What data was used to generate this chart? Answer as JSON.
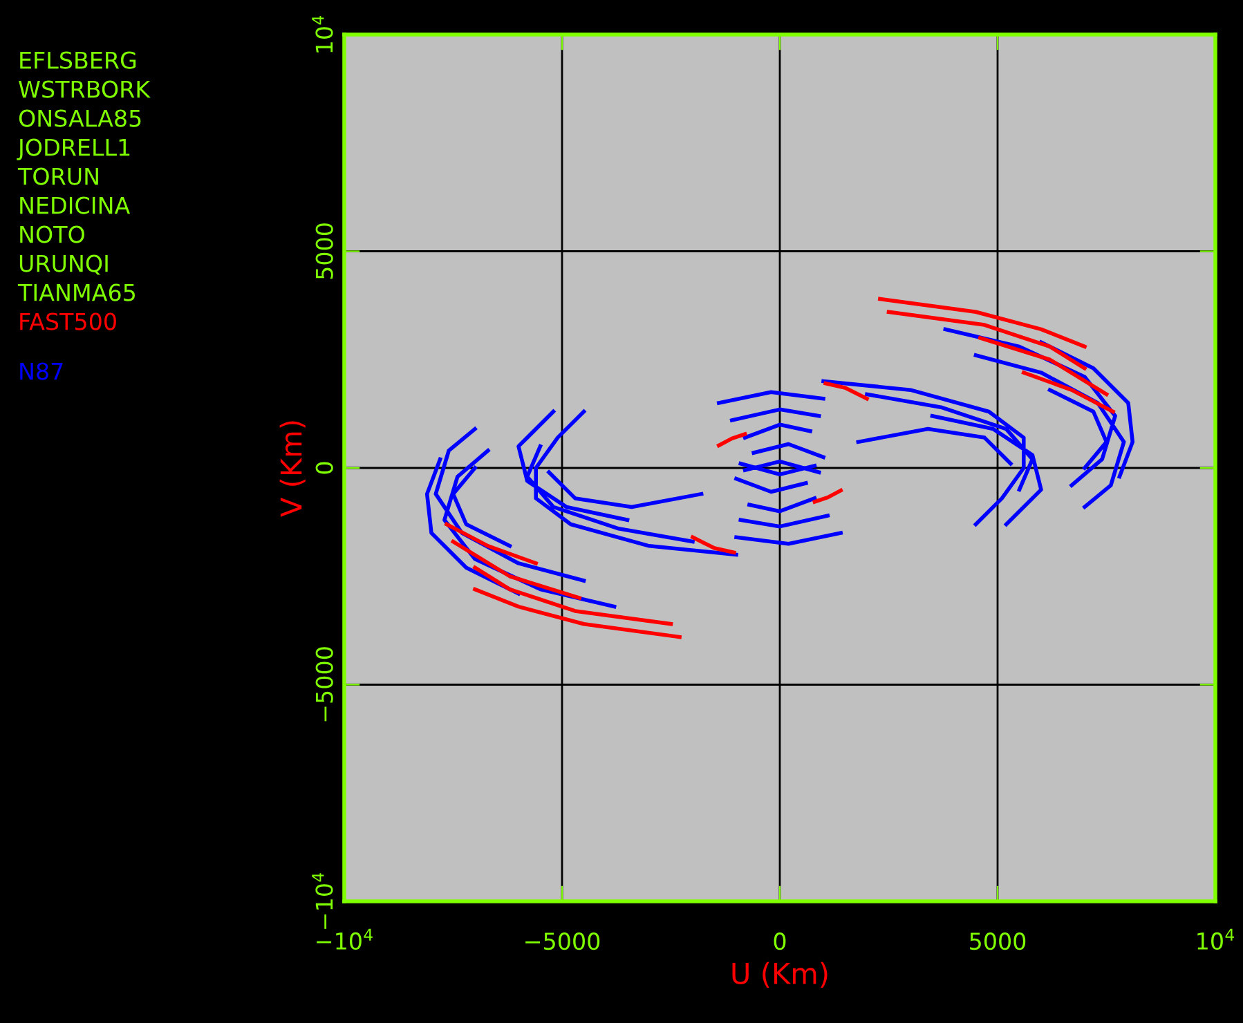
{
  "chart_data": {
    "type": "line",
    "xlabel": "U (Km)",
    "ylabel": "V (Km)",
    "xlim": [
      -10000,
      10000
    ],
    "ylim": [
      -10000,
      10000
    ],
    "xticks": [
      {
        "value": -10000,
        "label": "−10$^{4}$"
      },
      {
        "value": -5000,
        "label": "−5000"
      },
      0,
      5000,
      {
        "value": 10000,
        "label": "10$^{4}$"
      }
    ],
    "yticks": [
      {
        "value": -10000,
        "label": "−10$^{4}$"
      },
      {
        "value": -5000,
        "label": "−5000"
      },
      0,
      5000,
      {
        "value": 10000,
        "label": "10$^{4}$"
      }
    ],
    "grid": true,
    "marker": "none",
    "line_style": "solid",
    "legend": "left",
    "annotations": [
      "EFLSBERG",
      "WSTRBORK",
      "ONSALA85",
      "JODRELL1",
      "TORUN",
      "NEDICINA",
      "NOTO",
      "URUNQI",
      "TIANMA65"
    ],
    "series": [
      {
        "name": "N87",
        "color": "#0000ff",
        "x": [
          3800,
          5500,
          7000,
          7700,
          7400,
          6700,
          null,
          4500,
          6000,
          7300,
          7900,
          7600,
          7000,
          null,
          6000,
          7200,
          8000,
          8100,
          7800,
          null,
          6200,
          7200,
          7500,
          7000,
          null,
          1000,
          3000,
          4800,
          5600,
          5600,
          5100,
          4500,
          null,
          2000,
          3700,
          5200,
          5800,
          5500,
          null,
          3500,
          4900,
          5800,
          6000,
          5200,
          null,
          1800,
          3400,
          4700,
          5300,
          null,
          -1400,
          -200,
          1000,
          null,
          -1100,
          0,
          900,
          null,
          -800,
          0,
          700,
          null,
          -600,
          200,
          1000,
          null,
          -800,
          0,
          900,
          null,
          -3800,
          -5500,
          -7000,
          -7700,
          -7400,
          -6700,
          null,
          -4500,
          -6000,
          -7300,
          -7900,
          -7600,
          -7000,
          null,
          -6000,
          -7200,
          -8000,
          -8100,
          -7800,
          null,
          -6200,
          -7200,
          -7500,
          -7000,
          null,
          -1000,
          -3000,
          -4800,
          -5600,
          -5600,
          -5100,
          -4500,
          null,
          -2000,
          -3700,
          -5200,
          -5800,
          -5500,
          null,
          -3500,
          -4900,
          -5800,
          -6000,
          -5200,
          null,
          -1800,
          -3400,
          -4700,
          -5300,
          null,
          1400,
          200,
          -1000,
          null,
          1100,
          0,
          -900,
          null,
          800,
          0,
          -700,
          null,
          600,
          -200,
          -1000,
          null,
          800,
          0,
          -900
        ],
        "values": [
          3200,
          2800,
          2100,
          1200,
          200,
          -400,
          null,
          2600,
          2200,
          1500,
          600,
          -400,
          -900,
          null,
          2900,
          2300,
          1500,
          600,
          -200,
          null,
          1800,
          1300,
          600,
          0,
          null,
          2000,
          1800,
          1300,
          700,
          0,
          -700,
          -1300,
          null,
          1700,
          1400,
          900,
          200,
          -500,
          null,
          1200,
          900,
          300,
          -500,
          -1300,
          null,
          600,
          900,
          700,
          100,
          null,
          1500,
          1750,
          1600,
          null,
          1100,
          1350,
          1200,
          null,
          700,
          1000,
          850,
          null,
          350,
          550,
          250,
          null,
          -50,
          150,
          -100,
          null,
          -3200,
          -2800,
          -2100,
          -1200,
          -200,
          400,
          null,
          -2600,
          -2200,
          -1500,
          -600,
          400,
          900,
          null,
          -2900,
          -2300,
          -1500,
          -600,
          200,
          null,
          -1800,
          -1300,
          -600,
          0,
          null,
          -2000,
          -1800,
          -1300,
          -700,
          0,
          700,
          1300,
          null,
          -1700,
          -1400,
          -900,
          -200,
          500,
          null,
          -1200,
          -900,
          -300,
          500,
          1300,
          null,
          -600,
          -900,
          -700,
          -100,
          null,
          -1500,
          -1750,
          -1600,
          null,
          -1100,
          -1350,
          -1200,
          null,
          -700,
          -1000,
          -850,
          null,
          -350,
          -550,
          -250,
          null,
          50,
          -150,
          100
        ]
      },
      {
        "name": "FAST500",
        "color": "#ff0000",
        "x": [
          2300,
          4500,
          6000,
          7000,
          null,
          2500,
          4700,
          6200,
          7000,
          null,
          4600,
          6200,
          7500,
          null,
          5600,
          6700,
          7650,
          null,
          1050,
          1500,
          2000,
          null,
          -2300,
          -4500,
          -6000,
          -7000,
          null,
          -2500,
          -4700,
          -6200,
          -7000,
          null,
          -4600,
          -6200,
          -7500,
          null,
          -5600,
          -6700,
          -7650,
          null,
          -1050,
          -1500,
          -2000
        ],
        "values": [
          3900,
          3600,
          3200,
          2800,
          null,
          3600,
          3300,
          2800,
          2300,
          null,
          3000,
          2500,
          1700,
          null,
          2200,
          1800,
          1300,
          null,
          1950,
          1850,
          1600,
          null,
          -3900,
          -3600,
          -3200,
          -2800,
          null,
          -3600,
          -3300,
          -2800,
          -2300,
          null,
          -3000,
          -2500,
          -1700,
          null,
          -2200,
          -1800,
          -1300,
          null,
          -1950,
          -1850,
          -1600
        ]
      },
      {
        "color": "#ff0000",
        "x": [
          800,
          1100,
          1400,
          null,
          -800,
          -1100,
          -1400
        ],
        "values": [
          -780,
          -680,
          -520,
          null,
          780,
          680,
          520
        ]
      }
    ]
  }
}
